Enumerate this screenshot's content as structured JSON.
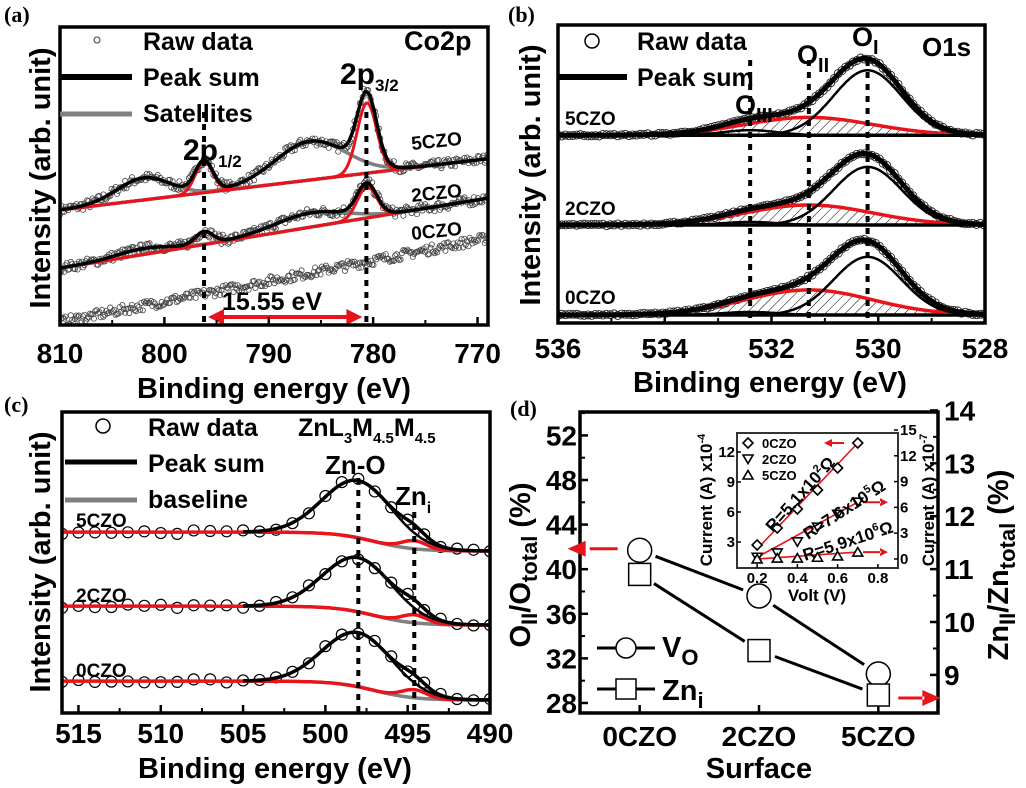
{
  "colors": {
    "fit_red": "#e8141b",
    "satellite_grey": "#808080",
    "sum_black": "#000000"
  },
  "chart_data": [
    {
      "panel_label": "(a)",
      "type": "line",
      "title": "Co2p",
      "xlabel": "Binding energy (eV)",
      "ylabel": "Intensity (arb. unit)",
      "xlim": [
        810,
        769
      ],
      "ylim": [
        0,
        100
      ],
      "xticks": [
        810,
        800,
        790,
        780,
        770
      ],
      "grid": false,
      "legend": [
        {
          "label": "Raw data",
          "marker": "open-circle"
        },
        {
          "label": "Peak sum",
          "color": "#000000"
        },
        {
          "label": "Satellites",
          "color": "#808080"
        }
      ],
      "peak_labels": [
        {
          "main": "2p",
          "sub": "3/2"
        },
        {
          "main": "2p",
          "sub": "1/2"
        }
      ],
      "reference_lines": [
        796.2,
        780.65
      ],
      "splitting": {
        "label": "15.55 eV",
        "from": 796.2,
        "to": 780.65
      },
      "series": [
        {
          "name": "5CZO",
          "baseline": {
            "type": "linear",
            "points": [
              [
                810,
                38.6
              ],
              [
                770,
                55.4
              ]
            ]
          },
          "peaks": [
            {
              "center": 780.6,
              "fwhm": 2.2,
              "height": 23.6,
              "role": "main"
            },
            {
              "center": 796.2,
              "fwhm": 2.0,
              "height": 10.3,
              "role": "main"
            },
            {
              "center": 786.0,
              "fwhm": 8.0,
              "height": 13.0,
              "role": "satellite"
            },
            {
              "center": 802.0,
              "fwhm": 6.0,
              "height": 7.4,
              "role": "satellite"
            }
          ]
        },
        {
          "name": "2CZO",
          "baseline": {
            "type": "linear",
            "points": [
              [
                810,
                19.1
              ],
              [
                770,
                42.0
              ]
            ]
          },
          "peaks": [
            {
              "center": 780.6,
              "fwhm": 2.2,
              "height": 10.4,
              "role": "main"
            },
            {
              "center": 796.2,
              "fwhm": 2.0,
              "height": 4.2,
              "role": "main"
            },
            {
              "center": 786.0,
              "fwhm": 8.0,
              "height": 4.8,
              "role": "satellite"
            },
            {
              "center": 802.0,
              "fwhm": 6.0,
              "height": 2.0,
              "role": "satellite"
            }
          ]
        },
        {
          "name": "0CZO",
          "baseline": {
            "type": "linear",
            "points": [
              [
                810,
                1.0
              ],
              [
                770,
                28.5
              ]
            ]
          },
          "peaks": []
        }
      ]
    },
    {
      "panel_label": "(b)",
      "type": "line",
      "title": "O1s",
      "xlabel": "Binding energy (eV)",
      "ylabel": "Intensity (arb. unit)",
      "xlim": [
        536,
        528
      ],
      "ylim": [
        0,
        100
      ],
      "xticks": [
        536,
        534,
        532,
        530,
        528
      ],
      "grid": false,
      "legend": [
        {
          "label": "Raw data",
          "marker": "open-circle"
        },
        {
          "label": "Peak sum",
          "color": "#000000"
        }
      ],
      "peak_labels": [
        {
          "main": "O",
          "sub": "I"
        },
        {
          "main": "O",
          "sub": "II"
        },
        {
          "main": "O",
          "sub": "III"
        }
      ],
      "reference_lines": [
        532.4,
        531.3,
        530.2
      ],
      "series": [
        {
          "name": "5CZO",
          "baseline": {
            "type": "flat",
            "level": 63.0
          },
          "peaks": [
            {
              "center": 530.2,
              "fwhm": 1.5,
              "height": 21.8,
              "role": "O_I"
            },
            {
              "center": 531.3,
              "fwhm": 2.8,
              "height": 6.0,
              "role": "O_II"
            },
            {
              "center": 532.4,
              "fwhm": 1.2,
              "height": 1.7,
              "role": "O_III"
            }
          ]
        },
        {
          "name": "2CZO",
          "baseline": {
            "type": "flat",
            "level": 32.9
          },
          "peaks": [
            {
              "center": 530.2,
              "fwhm": 1.5,
              "height": 19.5,
              "role": "O_I"
            },
            {
              "center": 531.3,
              "fwhm": 2.8,
              "height": 6.7,
              "role": "O_II"
            },
            {
              "center": 532.4,
              "fwhm": 1.2,
              "height": 1.0,
              "role": "O_III"
            }
          ]
        },
        {
          "name": "0CZO",
          "baseline": {
            "type": "flat",
            "level": 2.7
          },
          "peaks": [
            {
              "center": 530.2,
              "fwhm": 1.5,
              "height": 19.5,
              "role": "O_I"
            },
            {
              "center": 531.3,
              "fwhm": 2.8,
              "height": 8.4,
              "role": "O_II"
            },
            {
              "center": 532.4,
              "fwhm": 1.2,
              "height": 1.0,
              "role": "O_III"
            }
          ]
        }
      ]
    },
    {
      "panel_label": "(c)",
      "type": "line",
      "xlabel": "Binding energy (eV)",
      "ylabel": "Intensity (arb. unit)",
      "xlim": [
        516,
        490
      ],
      "ylim": [
        0,
        100
      ],
      "xticks": [
        515,
        510,
        505,
        500,
        495,
        490
      ],
      "grid": false,
      "legend": [
        {
          "label": "Raw data",
          "marker": "open-circle"
        },
        {
          "label": "Peak sum",
          "color": "#000000"
        },
        {
          "label": "baseline",
          "color": "#808080"
        }
      ],
      "auger_label": [
        {
          "t": "ZnL"
        },
        {
          "sub": "3"
        },
        {
          "t": "M"
        },
        {
          "sub": "4.5"
        },
        {
          "t": "M"
        },
        {
          "sub": "4.5"
        }
      ],
      "peak_labels": [
        {
          "main": "Zn-O",
          "sub": ""
        },
        {
          "main": "Zn",
          "sub": "i"
        }
      ],
      "reference_lines": [
        498.0,
        494.6
      ],
      "series": [
        {
          "name": "5CZO",
          "baseline": {
            "type": "step",
            "high_be_level": 60.1,
            "low_be_level": 53.8,
            "step_at": 497
          },
          "peaks": [
            {
              "center": 498.0,
              "fwhm": 5.0,
              "height": 19.0,
              "role": "Zn-O"
            },
            {
              "center": 494.6,
              "fwhm": 1.8,
              "height": 2.7,
              "role": "Zn_i"
            }
          ]
        },
        {
          "name": "2CZO",
          "baseline": {
            "type": "step",
            "high_be_level": 35.5,
            "low_be_level": 29.2,
            "step_at": 497
          },
          "peaks": [
            {
              "center": 498.0,
              "fwhm": 5.0,
              "height": 18.0,
              "role": "Zn-O"
            },
            {
              "center": 494.6,
              "fwhm": 1.8,
              "height": 2.7,
              "role": "Zn_i"
            }
          ]
        },
        {
          "name": "0CZO",
          "baseline": {
            "type": "step",
            "high_be_level": 10.6,
            "low_be_level": 4.3,
            "step_at": 497
          },
          "peaks": [
            {
              "center": 498.0,
              "fwhm": 5.0,
              "height": 18.0,
              "role": "Zn-O"
            },
            {
              "center": 494.6,
              "fwhm": 1.8,
              "height": 2.7,
              "role": "Zn_i"
            }
          ]
        }
      ]
    },
    {
      "panel_label": "(d)",
      "type": "line",
      "categories": [
        "0CZO",
        "2CZO",
        "5CZO"
      ],
      "xlabel": "Surface",
      "ylabel_left": [
        {
          "t": "O"
        },
        {
          "sub": "II"
        },
        {
          "t": "/O"
        },
        {
          "sub": "total"
        },
        {
          "t": " (%)"
        }
      ],
      "ylabel_right": [
        {
          "t": "Zn"
        },
        {
          "sub": "II"
        },
        {
          "t": "/Zn"
        },
        {
          "sub": "total"
        },
        {
          "t": " (%)"
        }
      ],
      "ylim_left": [
        27.1,
        54.1
      ],
      "yticks_left": [
        28,
        32,
        36,
        40,
        44,
        48,
        52
      ],
      "ylim_right": [
        8.28,
        13.97
      ],
      "yticks_right": [
        9,
        10,
        11,
        12,
        13,
        14
      ],
      "legend_position": "bottom-left",
      "series": [
        {
          "name": {
            "main": "V",
            "sub": "O"
          },
          "axis": "left",
          "marker": "open-circle",
          "values": [
            41.7,
            37.6,
            30.6
          ]
        },
        {
          "name": {
            "main": "Zn",
            "sub": "i"
          },
          "axis": "right",
          "marker": "open-square",
          "values": [
            10.9,
            9.46,
            8.62
          ]
        }
      ],
      "inset": {
        "type": "scatter",
        "xlabel": "Volt (V)",
        "xlim": [
          0.1,
          0.9
        ],
        "xticks": [
          0.2,
          0.4,
          0.6,
          0.8
        ],
        "ylabel_left": {
          "main": "Current (A) x10",
          "sup": "-4"
        },
        "ylim_left": [
          0.4,
          13.9
        ],
        "yticks_left": [
          3,
          6,
          9,
          12
        ],
        "ylabel_right": {
          "main": "Current (A) x10",
          "sup": "-7"
        },
        "ylim_right": [
          -1.05,
          14.65
        ],
        "yticks_right": [
          0,
          3,
          6,
          9,
          12,
          15
        ],
        "legend_position": "top-left",
        "series": [
          {
            "name": "0CZO",
            "marker": "diamond",
            "axis": "left",
            "x": [
              0.2,
              0.3,
              0.4,
              0.5,
              0.6,
              0.7
            ],
            "y": [
              2.7,
              4.4,
              6.3,
              8.2,
              10.4,
              12.9
            ],
            "fit_label": {
              "main": "R=5.1x10",
              "sup": "2",
              "unit": "Ω"
            }
          },
          {
            "name": "2CZO",
            "marker": "triangle-down",
            "axis": "right",
            "x": [
              0.2,
              0.3,
              0.4,
              0.5,
              0.6,
              0.7
            ],
            "y": [
              0.2,
              0.7,
              2.0,
              3.7,
              5.2,
              6.6
            ],
            "fit_label": {
              "main": "R=7.6x10",
              "sup": "5",
              "unit": "Ω"
            }
          },
          {
            "name": "5CZO",
            "marker": "triangle-up",
            "axis": "right",
            "x": [
              0.2,
              0.3,
              0.4,
              0.5,
              0.6,
              0.7
            ],
            "y": [
              0.0,
              0.1,
              0.1,
              0.2,
              0.35,
              0.8
            ],
            "fit_label": {
              "main": "R=5.9x10",
              "sup": "6",
              "unit": "Ω"
            }
          }
        ]
      }
    }
  ]
}
